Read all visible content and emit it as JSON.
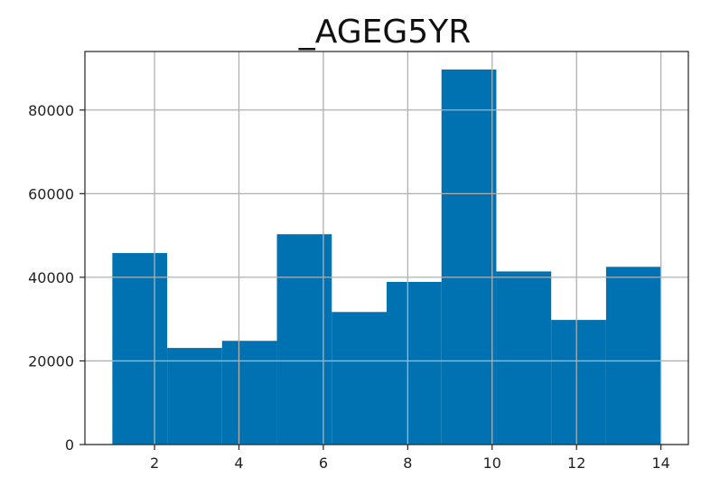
{
  "chart_data": {
    "type": "bar",
    "title": "_AGEG5YR",
    "xlabel": "",
    "ylabel": "",
    "bin_edges": [
      1,
      2.3,
      3.6,
      4.9,
      6.2,
      7.5,
      8.8,
      10.1,
      11.4,
      12.7,
      14
    ],
    "values": [
      45800,
      23100,
      24800,
      50300,
      31700,
      38900,
      89700,
      41400,
      29800,
      42500
    ],
    "xlim": [
      0.35,
      14.65
    ],
    "ylim": [
      0,
      94000
    ],
    "xticks": [
      2,
      4,
      6,
      8,
      10,
      12,
      14
    ],
    "yticks": [
      0,
      20000,
      40000,
      60000,
      80000
    ],
    "xtick_labels": [
      "2",
      "4",
      "6",
      "8",
      "10",
      "12",
      "14"
    ],
    "ytick_labels": [
      "0",
      "20000",
      "40000",
      "60000",
      "80000"
    ],
    "grid": true,
    "colors": {
      "bar": "#0072b2",
      "grid": "#b0b0b0",
      "axis": "#222222"
    }
  }
}
